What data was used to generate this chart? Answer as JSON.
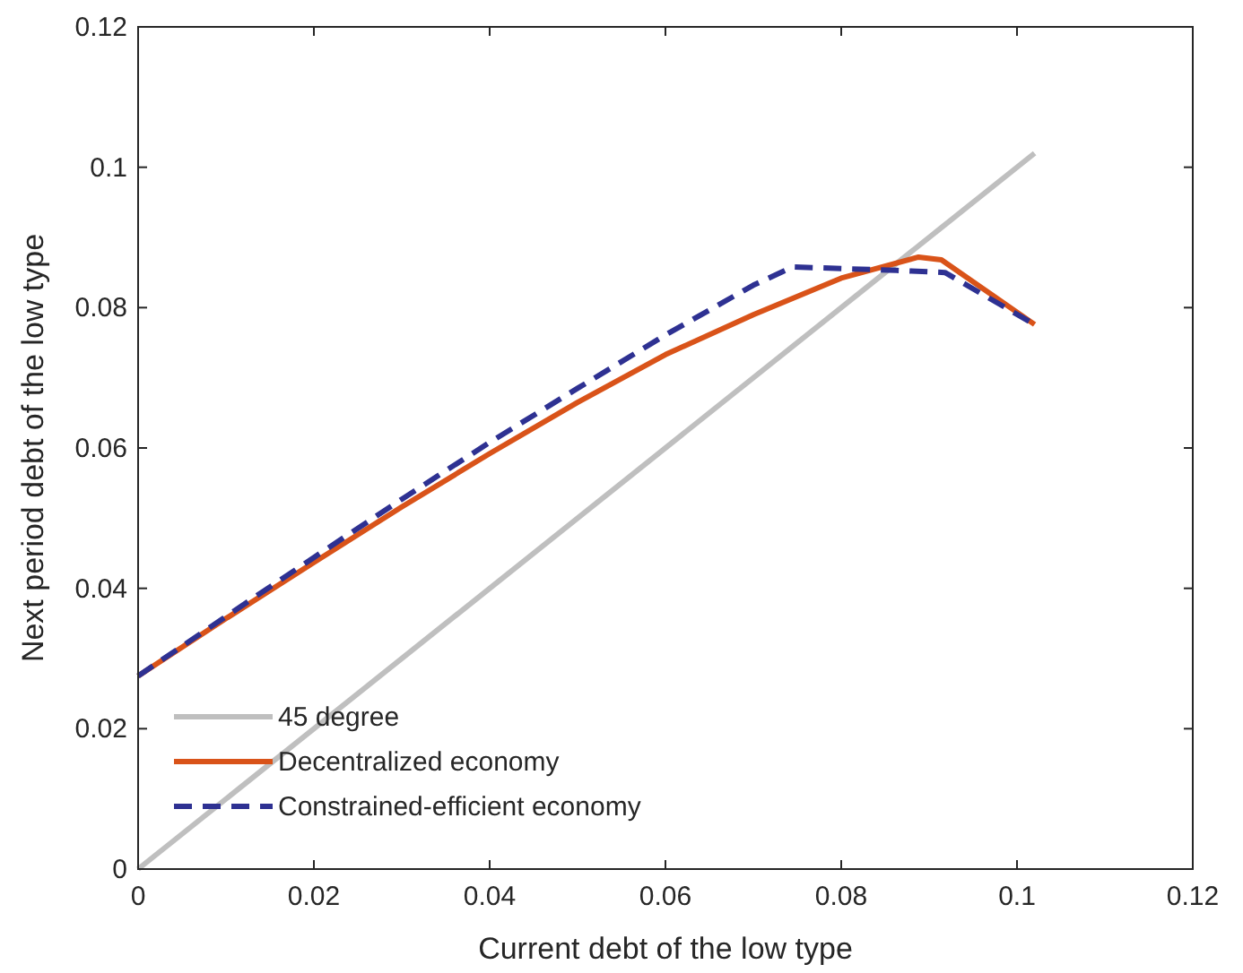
{
  "chart_data": {
    "type": "line",
    "xlabel": "Current debt of the low type",
    "ylabel": "Next period debt of the low type",
    "xlim": [
      0,
      0.12
    ],
    "ylim": [
      0,
      0.12
    ],
    "xticks": [
      0,
      0.02,
      0.04,
      0.06,
      0.08,
      0.1,
      0.12
    ],
    "yticks": [
      0,
      0.02,
      0.04,
      0.06,
      0.08,
      0.1,
      0.12
    ],
    "grid": false,
    "legend": "bottom left",
    "series": [
      {
        "name": "45 degree",
        "color": "#bfbfbf",
        "line_style": "solid",
        "x": [
          0,
          0.102
        ],
        "values": [
          0,
          0.102
        ]
      },
      {
        "name": "Decentralized economy",
        "color": "#d95319",
        "line_style": "solid",
        "x": [
          0,
          0.01,
          0.02,
          0.03,
          0.04,
          0.05,
          0.06,
          0.07,
          0.08,
          0.0888,
          0.0914,
          0.102
        ],
        "values": [
          0.0275,
          0.0357,
          0.0437,
          0.0516,
          0.0592,
          0.0665,
          0.0733,
          0.079,
          0.0842,
          0.0872,
          0.0868,
          0.0776
        ]
      },
      {
        "name": "Constrained-efficient economy",
        "color": "#2e3192",
        "line_style": "dashed",
        "x": [
          0,
          0.01,
          0.02,
          0.03,
          0.04,
          0.05,
          0.06,
          0.07,
          0.0745,
          0.0863,
          0.0918,
          0.102
        ],
        "values": [
          0.0275,
          0.036,
          0.0444,
          0.0527,
          0.0608,
          0.0685,
          0.0761,
          0.0832,
          0.0858,
          0.0853,
          0.085,
          0.0776
        ]
      }
    ]
  }
}
